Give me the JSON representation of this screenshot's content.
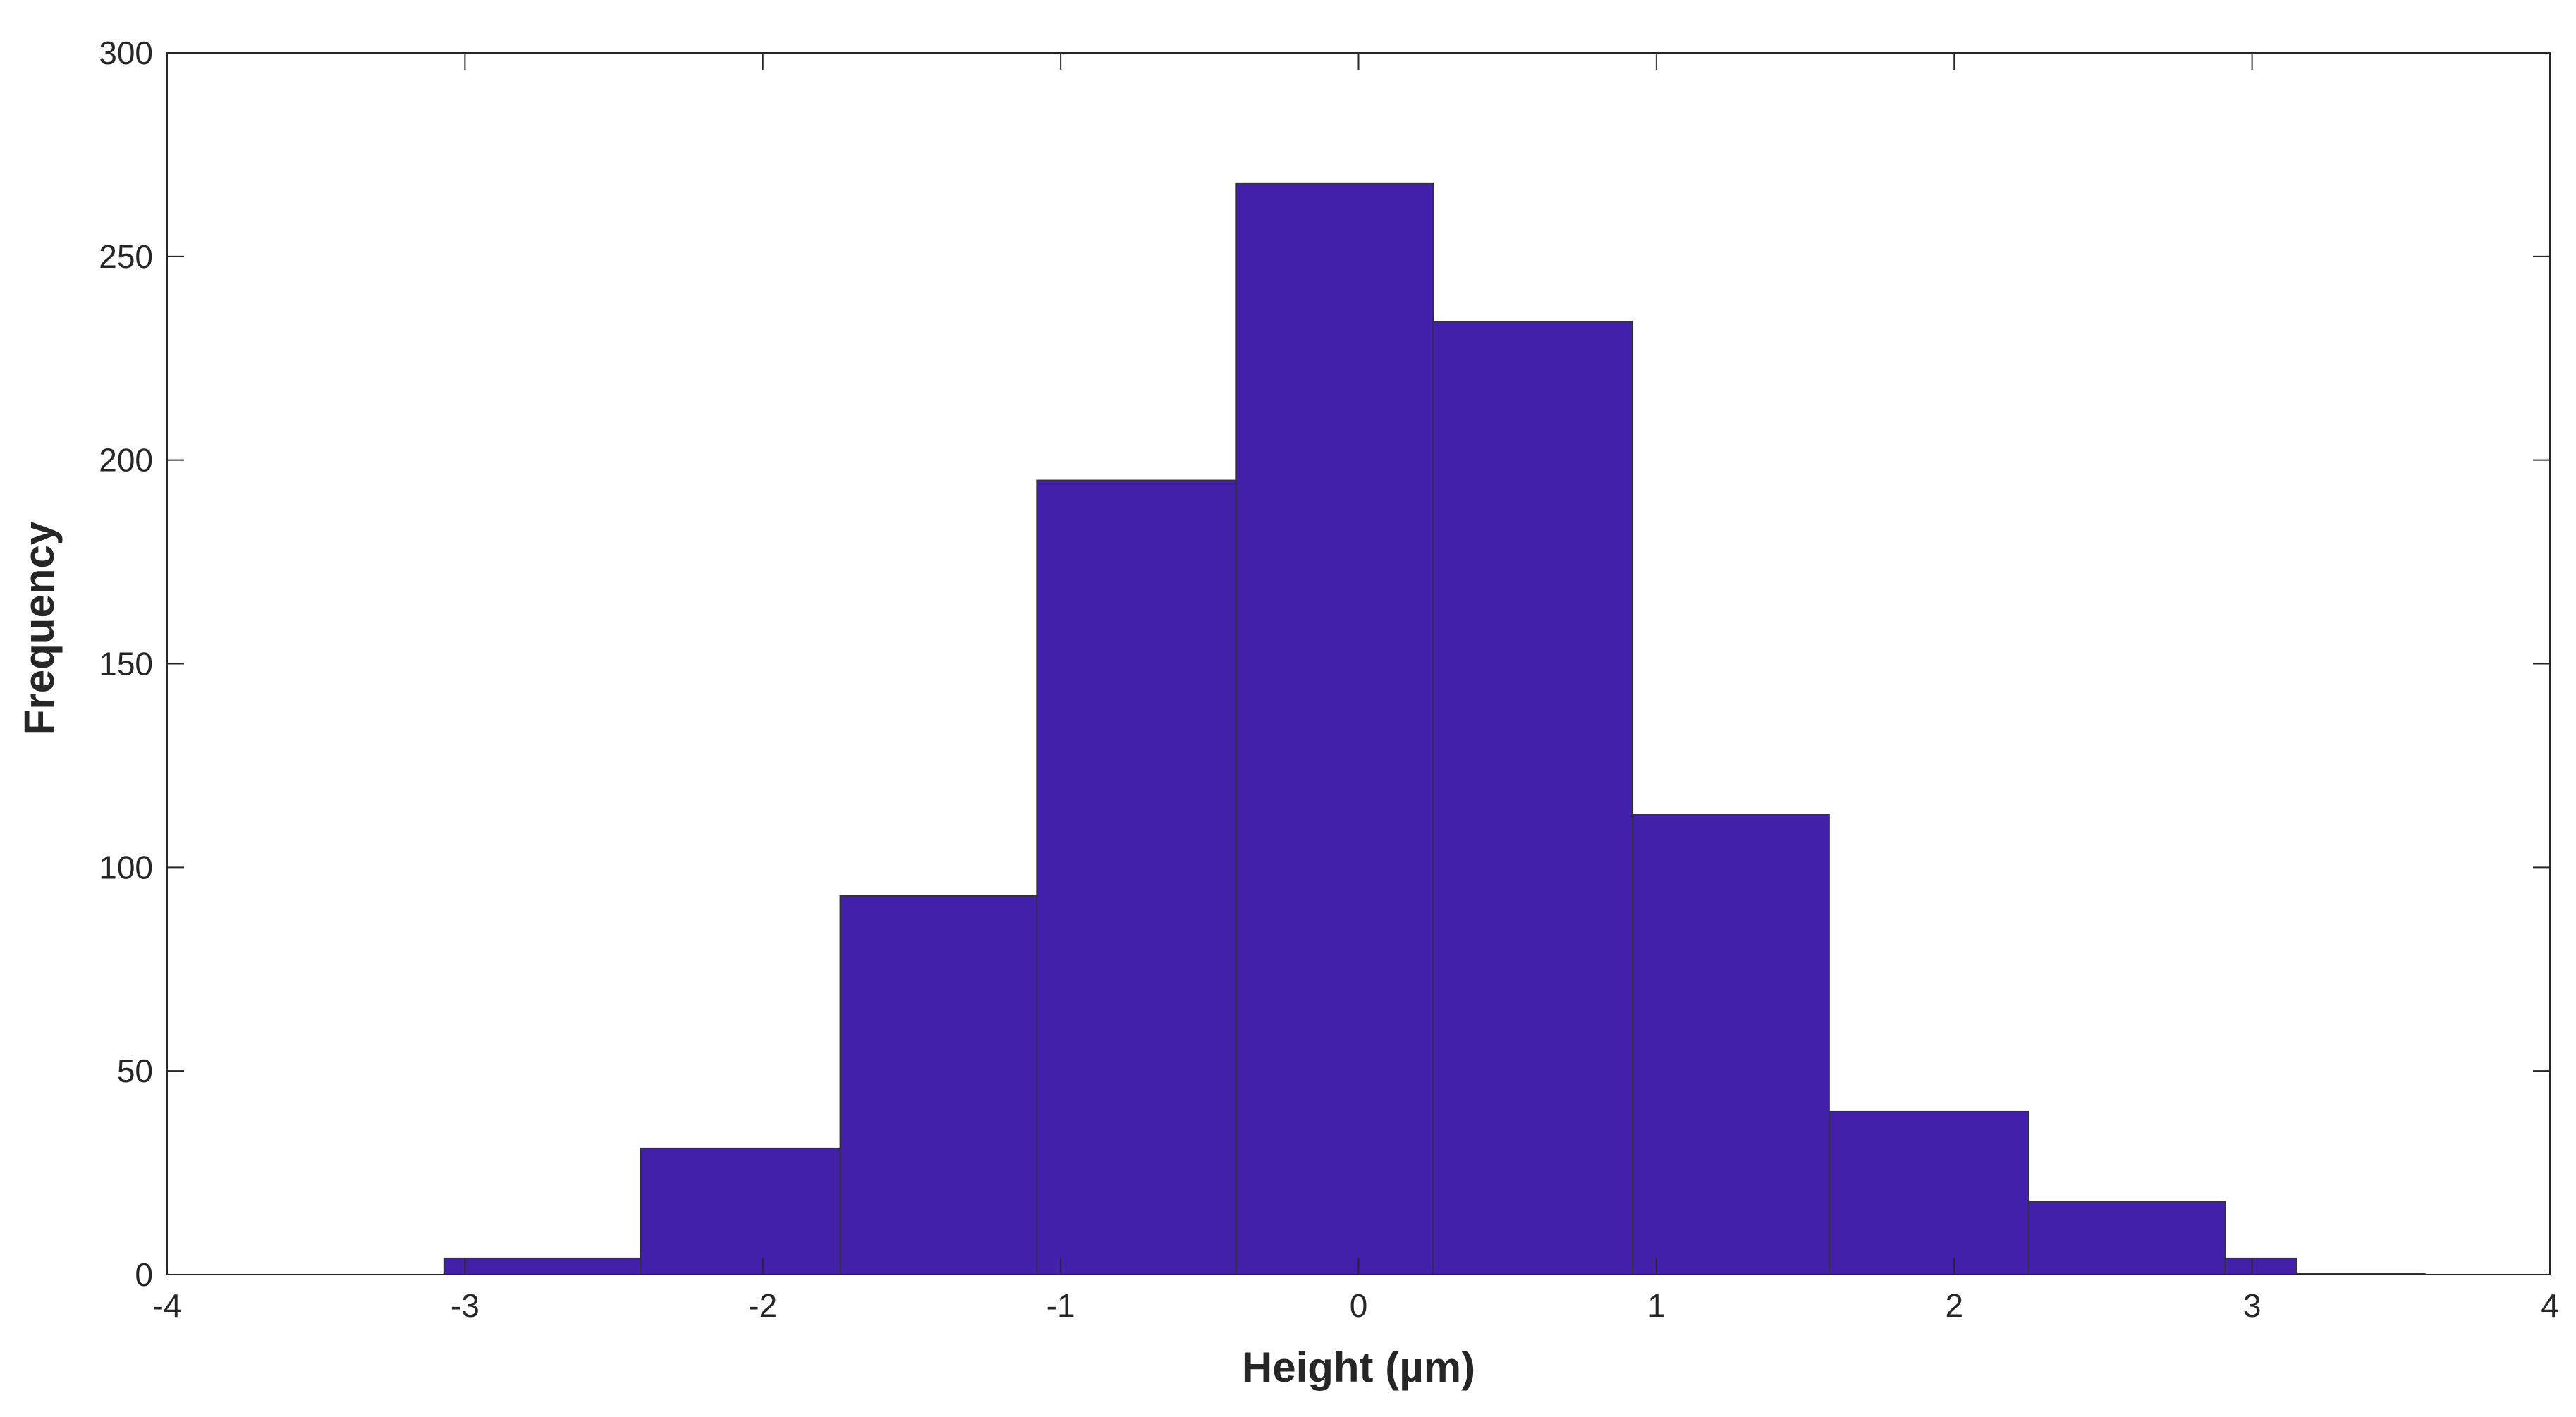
{
  "chart_data": {
    "type": "bar",
    "subtype": "histogram",
    "xlabel": "Height (µm)",
    "ylabel": "Frequency",
    "xlim": [
      -4,
      4
    ],
    "ylim": [
      0,
      300
    ],
    "x_ticks": [
      -4,
      -3,
      -2,
      -1,
      0,
      1,
      2,
      3,
      4
    ],
    "y_ticks": [
      0,
      50,
      100,
      150,
      200,
      250,
      300
    ],
    "x_tick_labels": [
      "-4",
      "-3",
      "-2",
      "-1",
      "0",
      "1",
      "2",
      "3",
      "4"
    ],
    "y_tick_labels": [
      "0",
      "50",
      "100",
      "150",
      "200",
      "250",
      "300"
    ],
    "bar_color": "#4220AA",
    "edge_color": "#333333",
    "grid": false,
    "bins": [
      {
        "x0": -3.07,
        "x1": -2.41,
        "count": 4
      },
      {
        "x0": -2.41,
        "x1": -1.74,
        "count": 31
      },
      {
        "x0": -1.74,
        "x1": -1.08,
        "count": 93
      },
      {
        "x0": -1.08,
        "x1": -0.41,
        "count": 195
      },
      {
        "x0": -0.41,
        "x1": 0.25,
        "count": 268
      },
      {
        "x0": 0.25,
        "x1": 0.92,
        "count": 234
      },
      {
        "x0": 0.92,
        "x1": 1.58,
        "count": 113
      },
      {
        "x0": 1.58,
        "x1": 2.25,
        "count": 40
      },
      {
        "x0": 2.25,
        "x1": 2.91,
        "count": 18
      },
      {
        "x0": 2.91,
        "x1": 3.15,
        "count": 4
      },
      {
        "x0": 3.15,
        "x1": 3.58,
        "count": 0
      }
    ]
  }
}
